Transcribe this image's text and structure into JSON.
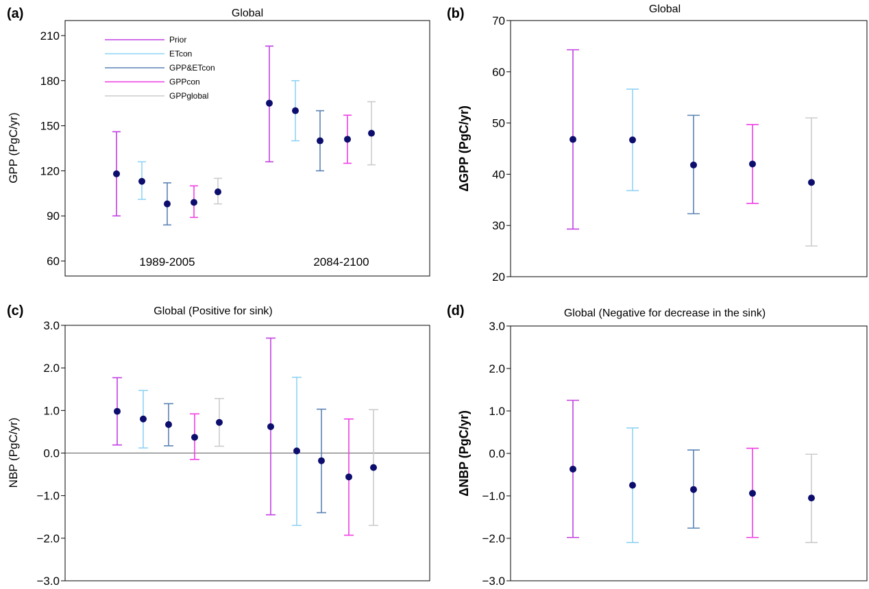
{
  "legend": [
    "Prior",
    "ETcon",
    "GPP&ETcon",
    "GPPcon",
    "GPPglobal"
  ],
  "colors": {
    "Prior": "#c23fe3",
    "ETcon": "#8fd3f5",
    "GPP&ETcon": "#5a82b4",
    "GPPcon": "#f03de6",
    "GPPglobal": "#cccccc",
    "marker": "#0d0d6e",
    "zero_line": "#555555"
  },
  "chart_data": [
    {
      "panel": "(a)",
      "type": "scatter",
      "title": "Global",
      "ylabel": "GPP (PgC/yr)",
      "ylim": [
        50,
        220
      ],
      "yticks": [
        60,
        90,
        120,
        150,
        180,
        210
      ],
      "ytick_labels": [
        "60",
        "90",
        "120",
        "150",
        "180",
        "210"
      ],
      "period_labels": [
        "1989-2005",
        "2084-2100"
      ],
      "legend": [
        "Prior",
        "ETcon",
        "GPP&ETcon",
        "GPPcon",
        "GPPglobal"
      ],
      "series": [
        {
          "name": "Prior",
          "values": [
            118,
            165
          ],
          "lower": [
            90,
            126
          ],
          "upper": [
            146,
            203
          ]
        },
        {
          "name": "ETcon",
          "values": [
            113,
            160
          ],
          "lower": [
            101,
            140
          ],
          "upper": [
            126,
            180
          ]
        },
        {
          "name": "GPP&ETcon",
          "values": [
            98,
            140
          ],
          "lower": [
            84,
            120
          ],
          "upper": [
            112,
            160
          ]
        },
        {
          "name": "GPPcon",
          "values": [
            99,
            141
          ],
          "lower": [
            89,
            125
          ],
          "upper": [
            110,
            157
          ]
        },
        {
          "name": "GPPglobal",
          "values": [
            106,
            145
          ],
          "lower": [
            98,
            124
          ],
          "upper": [
            115,
            166
          ]
        }
      ]
    },
    {
      "panel": "(b)",
      "type": "scatter",
      "title": "Global",
      "ylabel": "ΔGPP (PgC/yr)",
      "ylim": [
        20,
        70
      ],
      "yticks": [
        20,
        30,
        40,
        50,
        60,
        70
      ],
      "ytick_labels": [
        "20",
        "30",
        "40",
        "50",
        "60",
        "70"
      ],
      "series": [
        {
          "name": "Prior",
          "values": [
            46.8
          ],
          "lower": [
            29.3
          ],
          "upper": [
            64.3
          ]
        },
        {
          "name": "ETcon",
          "values": [
            46.7
          ],
          "lower": [
            36.8
          ],
          "upper": [
            56.6
          ]
        },
        {
          "name": "GPP&ETcon",
          "values": [
            41.8
          ],
          "lower": [
            32.3
          ],
          "upper": [
            51.5
          ]
        },
        {
          "name": "GPPcon",
          "values": [
            42.0
          ],
          "lower": [
            34.3
          ],
          "upper": [
            49.7
          ]
        },
        {
          "name": "GPPglobal",
          "values": [
            38.4
          ],
          "lower": [
            26.0
          ],
          "upper": [
            51.0
          ]
        }
      ]
    },
    {
      "panel": "(c)",
      "type": "scatter",
      "title": "Global (Positive for sink)",
      "ylabel": "NBP (PgC/yr)",
      "ylim": [
        -3.0,
        3.0
      ],
      "yticks": [
        -3,
        -2,
        -1,
        0,
        1,
        2,
        3
      ],
      "ytick_labels": [
        "−3.0",
        "−2.0",
        "−1.0",
        "0.0",
        "1.0",
        "2.0",
        "3.0"
      ],
      "zero_line": true,
      "series": [
        {
          "name": "Prior",
          "values": [
            0.98,
            0.62
          ],
          "lower": [
            0.19,
            -1.45
          ],
          "upper": [
            1.77,
            2.7
          ]
        },
        {
          "name": "ETcon",
          "values": [
            0.8,
            0.05
          ],
          "lower": [
            0.12,
            -1.7
          ],
          "upper": [
            1.47,
            1.78
          ]
        },
        {
          "name": "GPP&ETcon",
          "values": [
            0.67,
            -0.18
          ],
          "lower": [
            0.17,
            -1.4
          ],
          "upper": [
            1.16,
            1.03
          ]
        },
        {
          "name": "GPPcon",
          "values": [
            0.37,
            -0.56
          ],
          "lower": [
            -0.15,
            -1.93
          ],
          "upper": [
            0.92,
            0.8
          ]
        },
        {
          "name": "GPPglobal",
          "values": [
            0.72,
            -0.34
          ],
          "lower": [
            0.16,
            -1.7
          ],
          "upper": [
            1.28,
            1.02
          ]
        }
      ]
    },
    {
      "panel": "(d)",
      "type": "scatter",
      "title": "Global (Negative for decrease in the sink)",
      "ylabel": "ΔNBP (PgC/yr)",
      "ylim": [
        -3.0,
        3.0
      ],
      "yticks": [
        -3,
        -2,
        -1,
        0,
        1,
        2,
        3
      ],
      "ytick_labels": [
        "−3.0",
        "−2.0",
        "−1.0",
        "0.0",
        "1.0",
        "2.0",
        "3.0"
      ],
      "series": [
        {
          "name": "Prior",
          "values": [
            -0.37
          ],
          "lower": [
            -1.98
          ],
          "upper": [
            1.25
          ]
        },
        {
          "name": "ETcon",
          "values": [
            -0.75
          ],
          "lower": [
            -2.1
          ],
          "upper": [
            0.6
          ]
        },
        {
          "name": "GPP&ETcon",
          "values": [
            -0.85
          ],
          "lower": [
            -1.76
          ],
          "upper": [
            0.08
          ]
        },
        {
          "name": "GPPcon",
          "values": [
            -0.94
          ],
          "lower": [
            -1.98
          ],
          "upper": [
            0.12
          ]
        },
        {
          "name": "GPPglobal",
          "values": [
            -1.05
          ],
          "lower": [
            -2.1
          ],
          "upper": [
            -0.02
          ]
        }
      ]
    }
  ]
}
